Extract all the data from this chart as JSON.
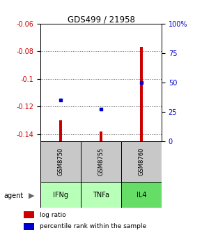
{
  "title": "GDS499 / 21958",
  "samples": [
    "GSM8750",
    "GSM8755",
    "GSM8760"
  ],
  "agents": [
    "IFNg",
    "TNFa",
    "IL4"
  ],
  "log_ratios": [
    -0.13,
    -0.138,
    -0.077
  ],
  "percentile_ranks": [
    35,
    27,
    50
  ],
  "ylim_left": [
    -0.145,
    -0.06
  ],
  "ylim_right": [
    0,
    100
  ],
  "yticks_left": [
    -0.14,
    -0.12,
    -0.1,
    -0.08,
    -0.06
  ],
  "yticks_right": [
    0,
    25,
    50,
    75,
    100
  ],
  "ytick_labels_left": [
    "-0.14",
    "-0.12",
    "-0.1",
    "-0.08",
    "-0.06"
  ],
  "ytick_labels_right": [
    "0",
    "25",
    "50",
    "75",
    "100%"
  ],
  "bar_color": "#cc0000",
  "dot_color": "#0000cc",
  "sample_bg_color": "#c8c8c8",
  "agent_bg_color_1": "#b8ffb8",
  "agent_bg_color_2": "#66dd66",
  "grid_color": "#555555",
  "title_color": "#000000",
  "left_axis_color": "#cc0000",
  "right_axis_color": "#0000cc",
  "bar_width": 0.08,
  "baseline": -0.145
}
